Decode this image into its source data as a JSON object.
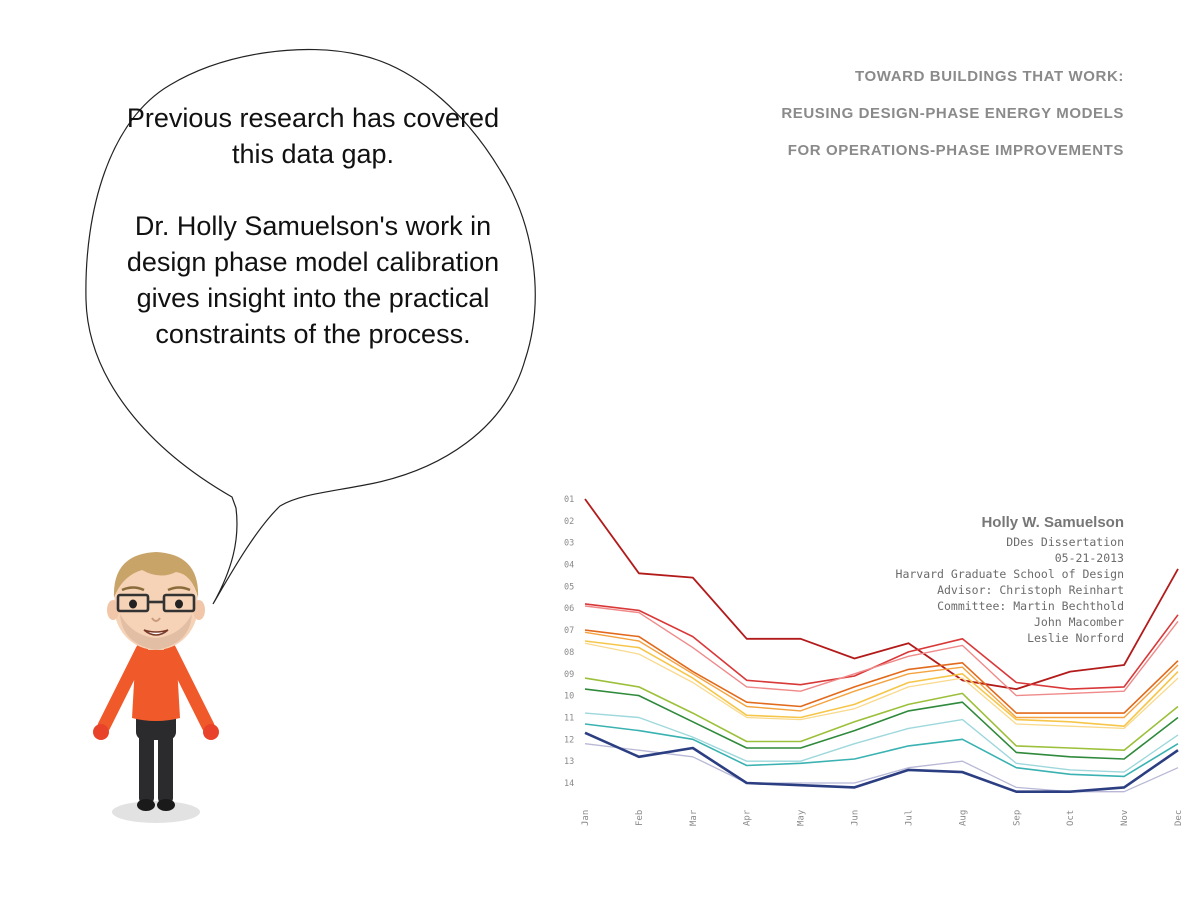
{
  "speech_bubble": {
    "paragraph_1": "Previous research has covered this data gap.",
    "paragraph_2": "Dr. Holly Samuelson's work in design phase model calibration gives insight into the practical constraints of the process."
  },
  "cover": {
    "title_line_1": "TOWARD BUILDINGS THAT WORK:",
    "title_line_2": "REUSING DESIGN-PHASE ENERGY MODELS",
    "title_line_3": "FOR OPERATIONS-PHASE IMPROVEMENTS",
    "author": "Holly W. Samuelson",
    "degree": "DDes Dissertation",
    "date": "05-21-2013",
    "school": "Harvard Graduate School of Design",
    "advisor": "Advisor: Christoph Reinhart",
    "committee_1": "Committee: Martin Bechthold",
    "committee_2": "John Macomber",
    "committee_3": "Leslie Norford"
  },
  "chart_data": {
    "type": "line",
    "categories": [
      "Jan",
      "Feb",
      "Mar",
      "Apr",
      "May",
      "Jun",
      "Jul",
      "Aug",
      "Sep",
      "Oct",
      "Nov",
      "Dec"
    ],
    "y_ticks": [
      "01",
      "02",
      "03",
      "04",
      "05",
      "06",
      "07",
      "08",
      "09",
      "10",
      "11",
      "12",
      "13",
      "14"
    ],
    "ylim": [
      0.5,
      14.5
    ],
    "y_inverted": true,
    "series": [
      {
        "color": "#b31b1b",
        "width": 1.8,
        "values": [
          1.0,
          4.4,
          4.6,
          7.4,
          7.4,
          8.3,
          7.6,
          9.3,
          9.7,
          8.9,
          8.6,
          4.2
        ]
      },
      {
        "color": "#d93838",
        "width": 1.6,
        "values": [
          5.8,
          6.1,
          7.3,
          9.3,
          9.5,
          9.1,
          8.0,
          7.4,
          9.4,
          9.7,
          9.6,
          6.3
        ]
      },
      {
        "color": "#f08a8a",
        "width": 1.4,
        "values": [
          5.9,
          6.2,
          7.8,
          9.6,
          9.8,
          9.0,
          8.2,
          7.7,
          10.0,
          9.9,
          9.8,
          6.6
        ]
      },
      {
        "color": "#e26a1c",
        "width": 1.6,
        "values": [
          7.0,
          7.3,
          8.9,
          10.3,
          10.5,
          9.6,
          8.8,
          8.5,
          10.8,
          10.8,
          10.8,
          8.4
        ]
      },
      {
        "color": "#f4a340",
        "width": 1.4,
        "values": [
          7.1,
          7.5,
          9.0,
          10.5,
          10.7,
          9.8,
          9.0,
          8.7,
          11.0,
          11.0,
          11.0,
          8.6
        ]
      },
      {
        "color": "#f6c64a",
        "width": 1.6,
        "values": [
          7.5,
          7.8,
          9.2,
          10.9,
          11.0,
          10.4,
          9.4,
          9.0,
          11.1,
          11.2,
          11.4,
          8.9
        ]
      },
      {
        "color": "#f9d98c",
        "width": 1.3,
        "values": [
          7.6,
          8.1,
          9.4,
          11.0,
          11.1,
          10.6,
          9.6,
          9.2,
          11.3,
          11.4,
          11.5,
          9.2
        ]
      },
      {
        "color": "#9cc03a",
        "width": 1.6,
        "values": [
          9.2,
          9.6,
          10.8,
          12.1,
          12.1,
          11.2,
          10.4,
          9.9,
          12.3,
          12.4,
          12.5,
          10.5
        ]
      },
      {
        "color": "#2f8a3c",
        "width": 1.6,
        "values": [
          9.7,
          10.0,
          11.2,
          12.4,
          12.4,
          11.6,
          10.7,
          10.3,
          12.6,
          12.8,
          12.9,
          11.0
        ]
      },
      {
        "color": "#9ed8dc",
        "width": 1.4,
        "values": [
          10.8,
          11.0,
          11.9,
          13.0,
          13.0,
          12.2,
          11.5,
          11.1,
          13.1,
          13.4,
          13.5,
          11.8
        ]
      },
      {
        "color": "#3ab2b2",
        "width": 1.6,
        "values": [
          11.3,
          11.6,
          12.0,
          13.2,
          13.1,
          12.9,
          12.3,
          12.0,
          13.3,
          13.6,
          13.7,
          12.2
        ]
      },
      {
        "color": "#b8b8d6",
        "width": 1.3,
        "values": [
          12.2,
          12.5,
          12.8,
          14.0,
          14.0,
          14.0,
          13.3,
          13.0,
          14.2,
          14.4,
          14.4,
          13.3
        ]
      },
      {
        "color": "#2c3e82",
        "width": 2.6,
        "values": [
          11.7,
          12.8,
          12.4,
          14.0,
          14.1,
          14.2,
          13.4,
          13.5,
          14.4,
          14.4,
          14.2,
          12.5
        ]
      }
    ]
  }
}
